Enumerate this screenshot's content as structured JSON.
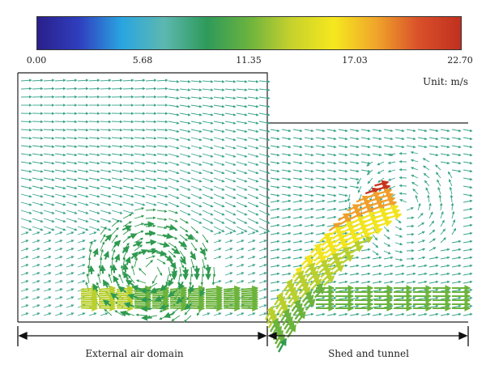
{
  "colorbar": {
    "ticks": [
      "0.00",
      "5.68",
      "11.35",
      "17.03",
      "22.70"
    ],
    "unit": "Unit: m/s",
    "colors": [
      "#2a1f8a",
      "#2f3fbf",
      "#2aa5e0",
      "#5cb8b0",
      "#2e9a5a",
      "#6ab33e",
      "#c7d12c",
      "#f5e81e",
      "#f0a52a",
      "#d9502a",
      "#c0301f"
    ]
  },
  "domains": {
    "left": "External air domain",
    "right": "Shed and tunnel"
  }
}
